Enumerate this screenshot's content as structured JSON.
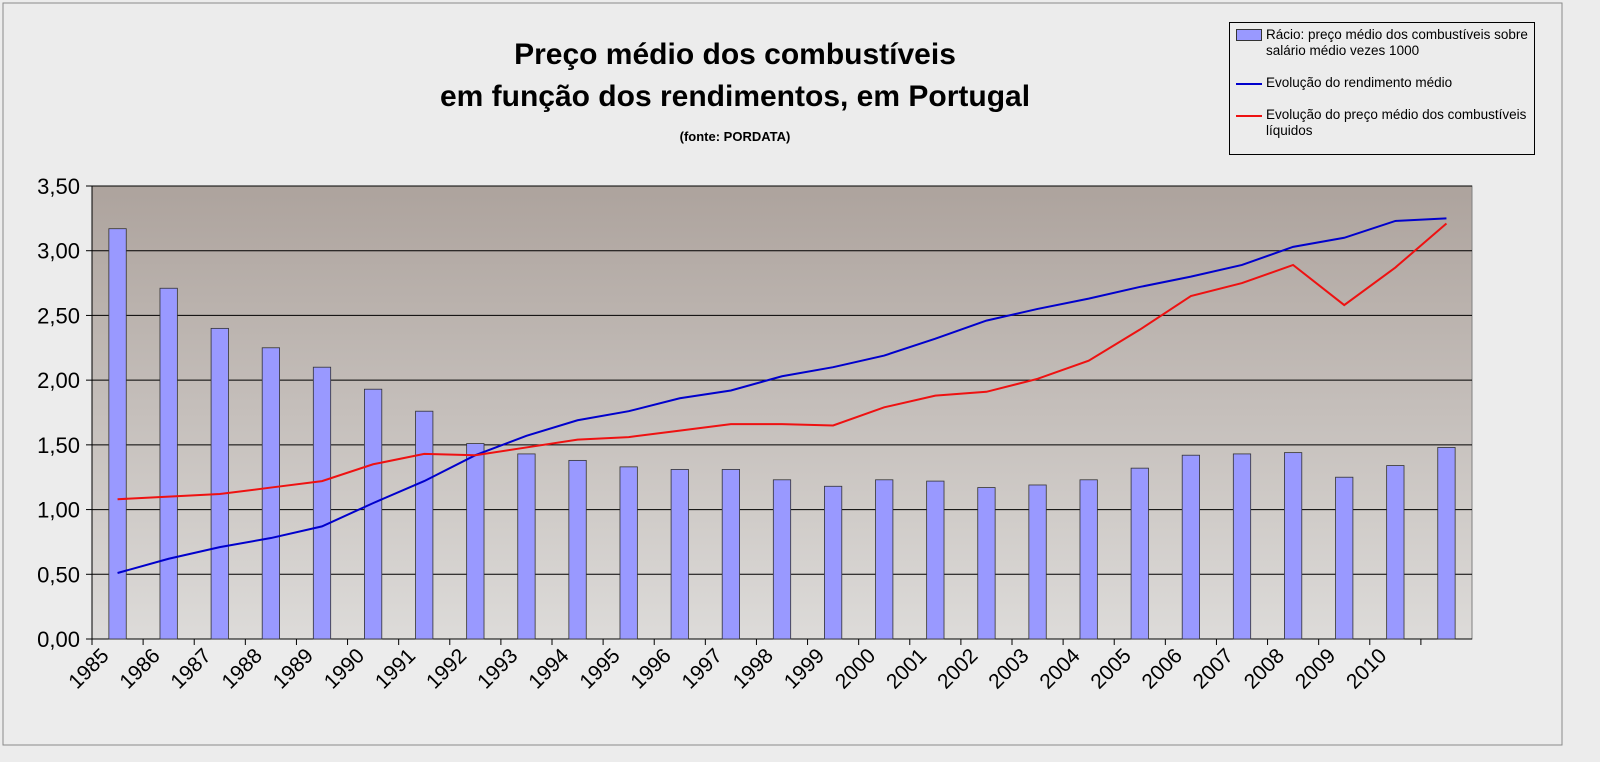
{
  "chart_data": {
    "type": "bar-line",
    "title": [
      "Preço médio dos combustíveis",
      "em função dos rendimentos, em Portugal"
    ],
    "subtitle": "(fonte: PORDATA)",
    "categories": [
      "1985",
      "1986",
      "1987",
      "1988",
      "1989",
      "1990",
      "1991",
      "1992",
      "1993",
      "1994",
      "1995",
      "1996",
      "1997",
      "1998",
      "1999",
      "2000",
      "2001",
      "2002",
      "2003",
      "2004",
      "2005",
      "2006",
      "2007",
      "2008",
      "2009",
      "2010",
      null
    ],
    "series": [
      {
        "name": "Rácio: preço médio dos combustíveis sobre salário médio vezes 1000",
        "type": "bar",
        "color": "#9999ff",
        "values": [
          3.17,
          2.71,
          2.4,
          2.25,
          2.1,
          1.93,
          1.76,
          1.51,
          1.43,
          1.38,
          1.33,
          1.31,
          1.31,
          1.23,
          1.18,
          1.23,
          1.22,
          1.17,
          1.19,
          1.23,
          1.32,
          1.42,
          1.43,
          1.44,
          1.25,
          1.34,
          1.48
        ]
      },
      {
        "name": "Evolução do rendimento médio",
        "type": "line",
        "color": "#0000cc",
        "values": [
          0.51,
          0.62,
          0.71,
          0.78,
          0.87,
          1.05,
          1.22,
          1.42,
          1.57,
          1.69,
          1.76,
          1.86,
          1.92,
          2.03,
          2.1,
          2.19,
          2.32,
          2.46,
          2.55,
          2.63,
          2.72,
          2.8,
          2.89,
          3.03,
          3.1,
          3.23,
          3.25
        ]
      },
      {
        "name": "Evolução do preço médio dos combustíveis líquidos",
        "type": "line",
        "color": "#ee1111",
        "values": [
          1.08,
          1.1,
          1.12,
          1.17,
          1.22,
          1.35,
          1.43,
          1.42,
          1.48,
          1.54,
          1.56,
          1.61,
          1.66,
          1.66,
          1.65,
          1.79,
          1.88,
          1.91,
          2.01,
          2.15,
          2.39,
          2.65,
          2.75,
          2.89,
          2.58,
          2.87,
          3.21
        ]
      }
    ],
    "ylim": [
      0,
      3.5
    ],
    "yticks": [
      {
        "value": 0,
        "label": "0,00"
      },
      {
        "value": 0.5,
        "label": "0,50"
      },
      {
        "value": 1,
        "label": "1,00"
      },
      {
        "value": 1.5,
        "label": "1,50"
      },
      {
        "value": 2,
        "label": "2,00"
      },
      {
        "value": 2.5,
        "label": "2,50"
      },
      {
        "value": 3,
        "label": "3,00"
      },
      {
        "value": 3.5,
        "label": "3,50"
      }
    ],
    "grid": true,
    "legend": "top-right"
  }
}
